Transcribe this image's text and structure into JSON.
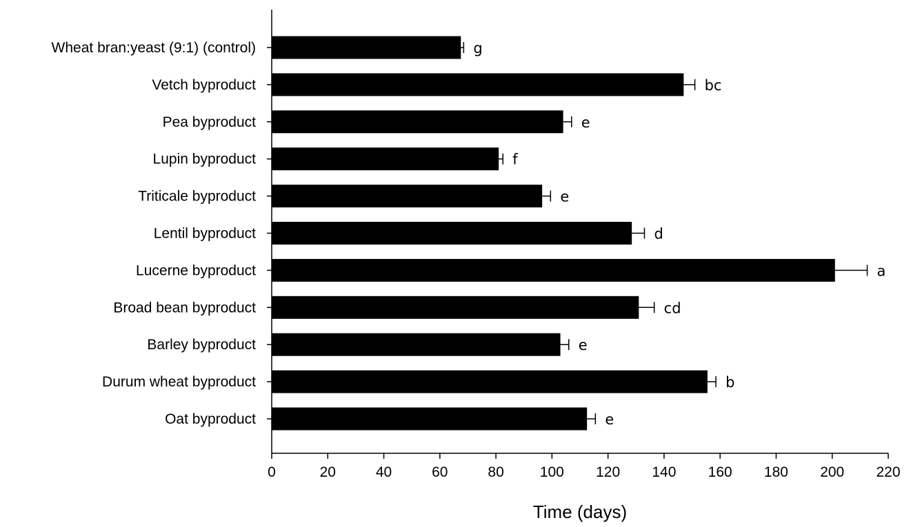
{
  "chart_data": {
    "type": "bar",
    "orientation": "horizontal",
    "title": "",
    "xlabel": "Time (days)",
    "ylabel": "",
    "xlim": [
      0,
      220
    ],
    "x_ticks": [
      0,
      20,
      40,
      60,
      80,
      100,
      120,
      140,
      160,
      180,
      200,
      220
    ],
    "grid": false,
    "legend": "none",
    "bar_color": "#000000",
    "categories": [
      "Wheat bran:yeast (9:1) (control)",
      "Vetch byproduct",
      "Pea byproduct",
      "Lupin byproduct",
      "Triticale byproduct",
      "Lentil byproduct",
      "Lucerne byproduct",
      "Broad bean byproduct",
      "Barley byproduct",
      "Durum wheat byproduct",
      "Oat byproduct"
    ],
    "values": [
      67.5,
      147,
      104,
      81,
      96.5,
      128.5,
      201,
      131,
      103,
      155.5,
      112.5
    ],
    "errors": [
      1,
      4,
      3,
      1.5,
      3,
      4.5,
      11.5,
      5.5,
      3,
      3,
      3
    ],
    "significance_letters": [
      "g",
      "bc",
      "e",
      "f",
      "e",
      "d",
      "a",
      "cd",
      "e",
      "b",
      "e"
    ]
  }
}
